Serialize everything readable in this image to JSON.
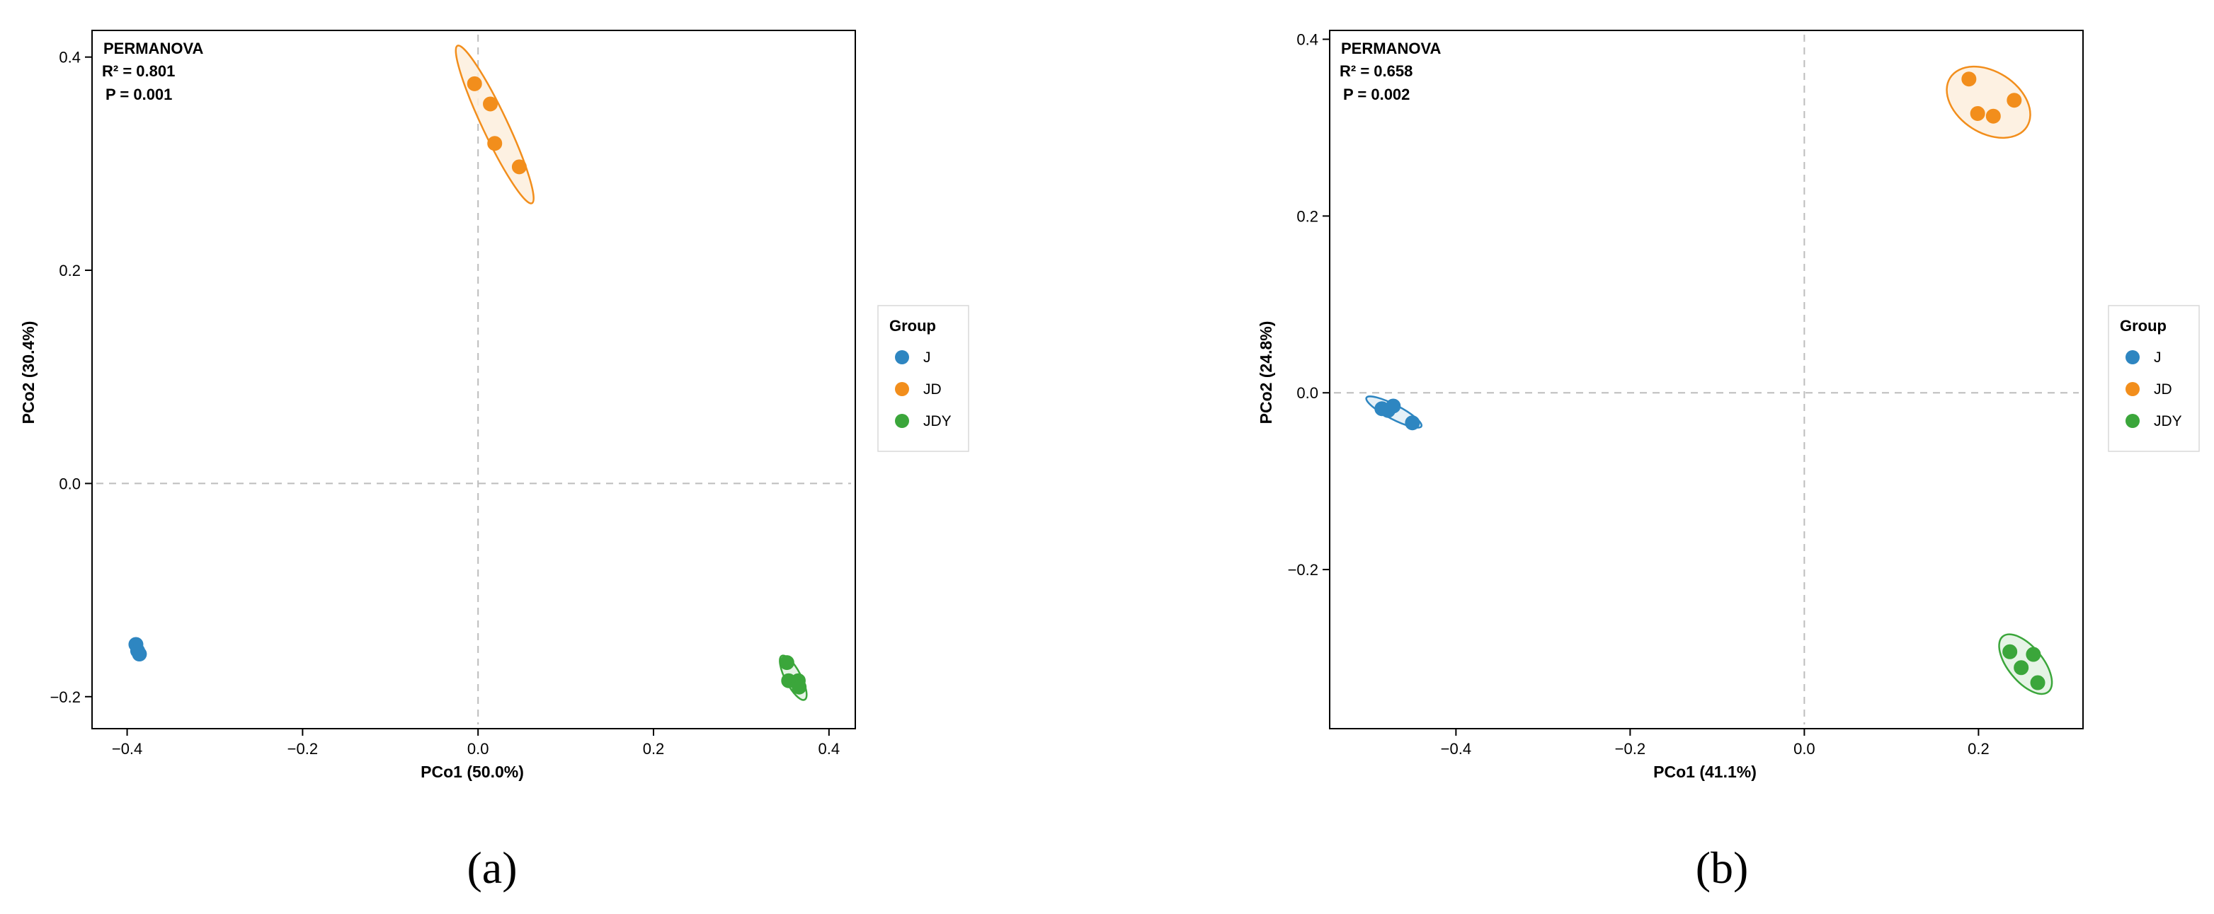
{
  "chart_data": [
    {
      "type": "scatter",
      "panel_label": "(a)",
      "xlabel": "PCo1 (50.0%)",
      "ylabel": "PCo2 (30.4%)",
      "xlim": [
        -0.44,
        0.43
      ],
      "ylim": [
        -0.23,
        0.425
      ],
      "xticks": [
        -0.4,
        -0.2,
        0.0,
        0.2,
        0.4
      ],
      "xtick_labels": [
        "−0.4",
        "−0.2",
        "0.0",
        "0.2",
        "0.4"
      ],
      "yticks": [
        -0.2,
        0.0,
        0.2,
        0.4
      ],
      "ytick_labels": [
        "−0.2",
        "0.0",
        "0.2",
        "0.4"
      ],
      "annotation": {
        "title": "PERMANOVA",
        "r2": "R² =  0.801",
        "p": "P = 0.001"
      },
      "legend": {
        "title": "Group",
        "position": "right"
      },
      "grid": false,
      "series": [
        {
          "name": "J",
          "color": "#2E86C1",
          "points": [
            [
              -0.39,
              -0.151
            ],
            [
              -0.388,
              -0.157
            ],
            [
              -0.386,
              -0.16
            ]
          ]
        },
        {
          "name": "JD",
          "color": "#F28E1C",
          "points": [
            [
              -0.004,
              0.375
            ],
            [
              0.014,
              0.356
            ],
            [
              0.019,
              0.319
            ],
            [
              0.047,
              0.297
            ]
          ]
        },
        {
          "name": "JDY",
          "color": "#3BA63B",
          "points": [
            [
              0.352,
              -0.168
            ],
            [
              0.354,
              -0.185
            ],
            [
              0.365,
              -0.185
            ],
            [
              0.366,
              -0.191
            ]
          ]
        }
      ]
    },
    {
      "type": "scatter",
      "panel_label": "(b)",
      "xlabel": "PCo1 (41.1%)",
      "ylabel": "PCo2 (24.8%)",
      "xlim": [
        -0.545,
        0.32
      ],
      "ylim": [
        -0.38,
        0.41
      ],
      "xticks": [
        -0.4,
        -0.2,
        0.0,
        0.2
      ],
      "xtick_labels": [
        "−0.4",
        "−0.2",
        "0.0",
        "0.2"
      ],
      "yticks": [
        -0.2,
        0.0,
        0.2,
        0.4
      ],
      "ytick_labels": [
        "−0.2",
        "0.0",
        "0.2",
        "0.4"
      ],
      "annotation": {
        "title": "PERMANOVA",
        "r2": "R² =  0.658",
        "p": "P = 0.002"
      },
      "legend": {
        "title": "Group",
        "position": "right"
      },
      "grid": false,
      "series": [
        {
          "name": "J",
          "color": "#2E86C1",
          "points": [
            [
              -0.485,
              -0.018
            ],
            [
              -0.478,
              -0.02
            ],
            [
              -0.472,
              -0.015
            ],
            [
              -0.45,
              -0.034
            ]
          ]
        },
        {
          "name": "JD",
          "color": "#F28E1C",
          "points": [
            [
              0.189,
              0.355
            ],
            [
              0.199,
              0.316
            ],
            [
              0.217,
              0.313
            ],
            [
              0.241,
              0.331
            ]
          ]
        },
        {
          "name": "JDY",
          "color": "#3BA63B",
          "points": [
            [
              0.236,
              -0.293
            ],
            [
              0.249,
              -0.311
            ],
            [
              0.263,
              -0.296
            ],
            [
              0.268,
              -0.328
            ]
          ]
        }
      ]
    }
  ]
}
